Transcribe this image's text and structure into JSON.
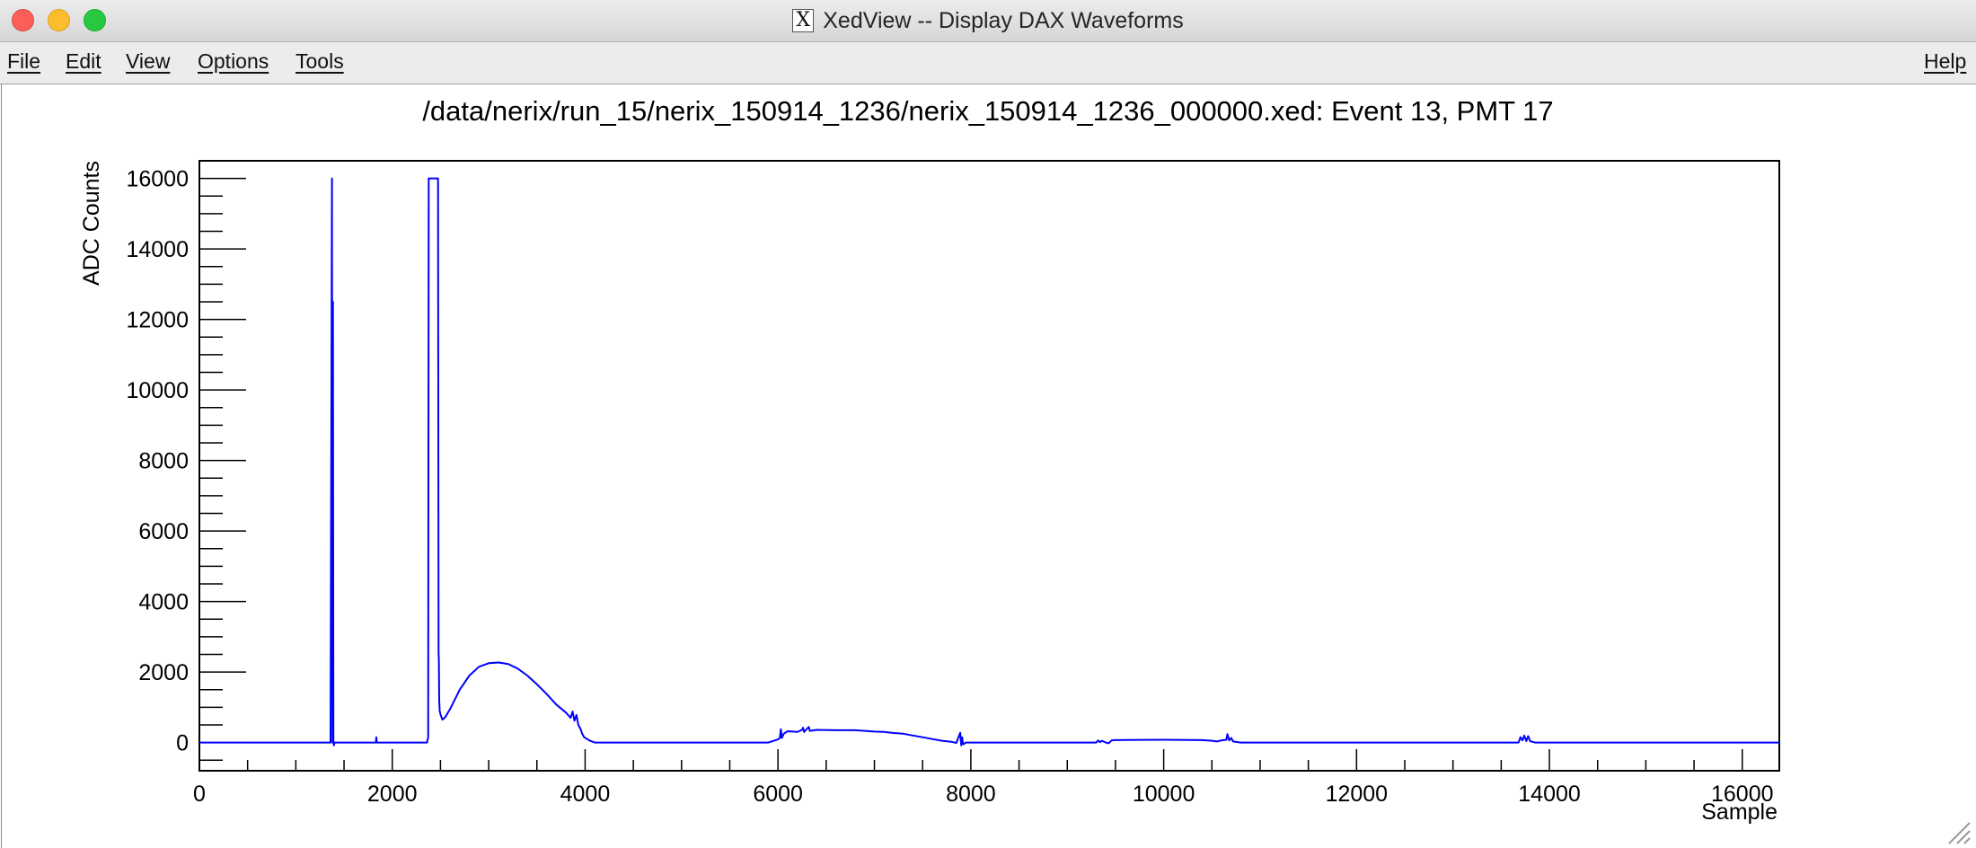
{
  "window": {
    "title": "XedView -- Display DAX Waveforms",
    "app_icon": "x11-icon",
    "app_icon_glyph": "X",
    "controls": [
      "close",
      "minimize",
      "zoom"
    ]
  },
  "menubar": {
    "items": [
      {
        "label": "File"
      },
      {
        "label": "Edit"
      },
      {
        "label": "View"
      },
      {
        "label": "Options"
      },
      {
        "label": "Tools"
      }
    ],
    "help": {
      "label": "Help"
    }
  },
  "canvas": {
    "plot_title": "/data/nerix/run_15/nerix_150914_1236/nerix_150914_1236_000000.xed: Event 13, PMT 17"
  },
  "chart_data": {
    "type": "line",
    "title": "/data/nerix/run_15/nerix_150914_1236/nerix_150914_1236_000000.xed: Event 13, PMT 17",
    "xlabel": "Sample",
    "ylabel": "ADC Counts",
    "xlim": [
      0,
      16384
    ],
    "ylim": [
      -800,
      16500
    ],
    "xticks": [
      0,
      2000,
      4000,
      6000,
      8000,
      10000,
      12000,
      14000,
      16000
    ],
    "yticks": [
      0,
      2000,
      4000,
      6000,
      8000,
      10000,
      12000,
      14000,
      16000
    ],
    "grid": false,
    "line_color": "#0000ff",
    "series": [
      {
        "x": [
          0,
          1360,
          1375,
          1380,
          1385,
          1390,
          1395,
          1400,
          1405,
          1410,
          1420,
          1830,
          1835,
          1840,
          1845,
          2340,
          2360,
          2372,
          2378,
          2385,
          2475,
          2480,
          2483,
          2487,
          2492,
          2500,
          2520,
          2550,
          2600,
          2700,
          2800,
          2900,
          3000,
          3100,
          3200,
          3300,
          3400,
          3500,
          3600,
          3700,
          3800,
          3850,
          3870,
          3890,
          3910,
          3930,
          3950,
          3970,
          3990,
          4050,
          4100,
          4150,
          4200,
          4250,
          5800,
          5900,
          6000,
          6020,
          6030,
          6040,
          6060,
          6100,
          6200,
          6250,
          6260,
          6270,
          6300,
          6320,
          6330,
          6400,
          6600,
          6800,
          7000,
          7100,
          7200,
          7300,
          7400,
          7500,
          7600,
          7700,
          7800,
          7850,
          7890,
          7900,
          7910,
          7920,
          7950,
          8000,
          9300,
          9320,
          9340,
          9360,
          9400,
          9430,
          9460,
          9480,
          9500,
          9600,
          10000,
          10400,
          10500,
          10550,
          10600,
          10650,
          10660,
          10680,
          10700,
          10720,
          10800,
          11000,
          12000,
          13000,
          13600,
          13680,
          13700,
          13720,
          13740,
          13760,
          13780,
          13800,
          13850,
          14000,
          15000,
          16384
        ],
        "y": [
          0,
          0,
          16000,
          0,
          12500,
          0,
          -80,
          0,
          0,
          0,
          0,
          0,
          150,
          0,
          0,
          0,
          0,
          150,
          16000,
          16000,
          16000,
          2500,
          2400,
          1200,
          900,
          800,
          650,
          720,
          950,
          1500,
          1900,
          2150,
          2250,
          2270,
          2230,
          2100,
          1900,
          1650,
          1380,
          1080,
          850,
          700,
          880,
          620,
          780,
          500,
          400,
          250,
          150,
          50,
          0,
          0,
          0,
          0,
          0,
          0,
          90,
          130,
          380,
          130,
          250,
          320,
          300,
          360,
          420,
          300,
          390,
          440,
          330,
          360,
          350,
          350,
          310,
          300,
          270,
          250,
          200,
          150,
          100,
          50,
          20,
          -10,
          280,
          -80,
          150,
          -50,
          0,
          0,
          0,
          60,
          10,
          50,
          0,
          -20,
          60,
          70,
          70,
          75,
          80,
          70,
          50,
          30,
          60,
          80,
          240,
          60,
          130,
          30,
          0,
          0,
          0,
          0,
          0,
          0,
          150,
          60,
          200,
          40,
          180,
          40,
          0,
          0,
          0,
          0
        ]
      }
    ]
  }
}
